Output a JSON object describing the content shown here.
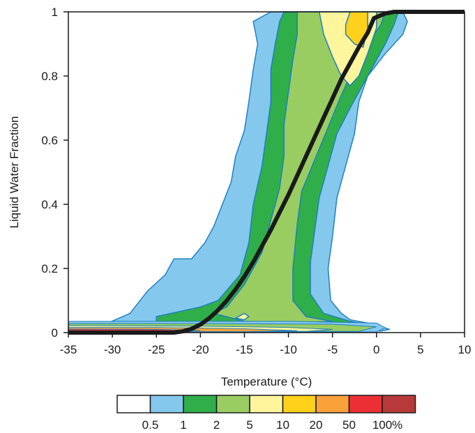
{
  "chart_data": {
    "type": "contour",
    "title": "",
    "xlabel": "Temperature (°C)",
    "ylabel": "Liquid Water Fraction",
    "xlim": [
      -35,
      10
    ],
    "ylim": [
      0,
      1
    ],
    "x_ticks": [
      "-35",
      "-30",
      "-25",
      "-20",
      "-15",
      "-10",
      "-5",
      "0",
      "5",
      "10"
    ],
    "y_ticks": [
      "0",
      "0.2",
      "0.4",
      "0.6",
      "0.8",
      "1"
    ],
    "grid": false,
    "contour_levels": [
      "0.5",
      "1",
      "2",
      "5",
      "10",
      "20",
      "50",
      "100"
    ],
    "colorbar_unit": "%",
    "colorbar_colors": [
      "#ffffff",
      "#85c8ee",
      "#2fae4a",
      "#99cd62",
      "#fff59d",
      "#ffd11a",
      "#f9a23a",
      "#ec2f34",
      "#b8393a"
    ],
    "contours": [
      {
        "level": "0.5",
        "color": "#85c8ee",
        "boundary": [
          [
            -30.5,
            0.03
          ],
          [
            -28,
            0.06
          ],
          [
            -26,
            0.13
          ],
          [
            -24,
            0.18
          ],
          [
            -23,
            0.23
          ],
          [
            -21,
            0.23
          ],
          [
            -19.5,
            0.28
          ],
          [
            -18.5,
            0.33
          ],
          [
            -17.5,
            0.4
          ],
          [
            -16.5,
            0.47
          ],
          [
            -16,
            0.55
          ],
          [
            -15,
            0.63
          ],
          [
            -14.5,
            0.72
          ],
          [
            -14,
            0.82
          ],
          [
            -13.5,
            0.9
          ],
          [
            -14,
            0.97
          ],
          [
            -12,
            1.0
          ],
          [
            3,
            1.0
          ],
          [
            3.5,
            0.97
          ],
          [
            3,
            0.93
          ],
          [
            1,
            0.87
          ],
          [
            -1,
            0.8
          ],
          [
            -2,
            0.72
          ],
          [
            -2.5,
            0.62
          ],
          [
            -3.5,
            0.52
          ],
          [
            -4.5,
            0.42
          ],
          [
            -5,
            0.3
          ],
          [
            -5.5,
            0.2
          ],
          [
            -5.2,
            0.1
          ],
          [
            -4,
            0.06
          ],
          [
            -3,
            0.04
          ],
          [
            -1,
            0.03
          ],
          [
            1.5,
            0.01
          ],
          [
            0.5,
            0.005
          ],
          [
            -5,
            0.005
          ],
          [
            -20,
            0.005
          ],
          [
            -35,
            0.005
          ],
          [
            -35,
            0.03
          ]
        ]
      },
      {
        "level": "1",
        "color": "#2fae4a",
        "boundary": [
          [
            -25,
            0.05
          ],
          [
            -20,
            0.08
          ],
          [
            -18,
            0.1
          ],
          [
            -15.5,
            0.18
          ],
          [
            -14.5,
            0.28
          ],
          [
            -14,
            0.4
          ],
          [
            -13,
            0.52
          ],
          [
            -12.5,
            0.62
          ],
          [
            -12,
            0.72
          ],
          [
            -12,
            0.82
          ],
          [
            -11.5,
            0.9
          ],
          [
            -11,
            0.97
          ],
          [
            -10.5,
            1.0
          ],
          [
            2.5,
            1.0
          ],
          [
            2,
            0.96
          ],
          [
            1,
            0.9
          ],
          [
            -1,
            0.8
          ],
          [
            -3,
            0.7
          ],
          [
            -4.5,
            0.62
          ],
          [
            -5.5,
            0.52
          ],
          [
            -6.5,
            0.42
          ],
          [
            -7,
            0.32
          ],
          [
            -7.5,
            0.22
          ],
          [
            -7.5,
            0.12
          ],
          [
            -6,
            0.06
          ],
          [
            -3,
            0.035
          ],
          [
            -1,
            0.025
          ],
          [
            -5,
            0.02
          ],
          [
            -15,
            0.02
          ],
          [
            -25,
            0.025
          ]
        ]
      },
      {
        "level": "2",
        "color": "#99cd62",
        "boundary": [
          [
            -18.5,
            0.06
          ],
          [
            -17,
            0.08
          ],
          [
            -15,
            0.15
          ],
          [
            -13,
            0.25
          ],
          [
            -12,
            0.35
          ],
          [
            -11,
            0.45
          ],
          [
            -10.5,
            0.55
          ],
          [
            -10.5,
            0.65
          ],
          [
            -10,
            0.75
          ],
          [
            -9.5,
            0.85
          ],
          [
            -9,
            0.93
          ],
          [
            -9,
            1.0
          ],
          [
            1,
            1.0
          ],
          [
            0.5,
            0.96
          ],
          [
            -1,
            0.9
          ],
          [
            -2.5,
            0.83
          ],
          [
            -4,
            0.74
          ],
          [
            -5.5,
            0.64
          ],
          [
            -7,
            0.54
          ],
          [
            -8.5,
            0.44
          ],
          [
            -9,
            0.34
          ],
          [
            -9.5,
            0.2
          ],
          [
            -9.5,
            0.1
          ],
          [
            -8,
            0.05
          ],
          [
            -5,
            0.035
          ],
          [
            -10,
            0.03
          ],
          [
            -15,
            0.035
          ]
        ]
      },
      {
        "level": "5",
        "color": "#fff59d",
        "boundary": [
          [
            -6.5,
            1.0
          ],
          [
            -6,
            0.93
          ],
          [
            -5,
            0.86
          ],
          [
            -4,
            0.8
          ],
          [
            -3,
            0.77
          ],
          [
            -2,
            0.8
          ],
          [
            -1,
            0.87
          ],
          [
            0,
            0.95
          ],
          [
            0,
            1.0
          ]
        ]
      },
      {
        "level": "5b",
        "color": "#fff59d",
        "boundary": [
          [
            -16,
            0.045
          ],
          [
            -15,
            0.06
          ],
          [
            -14.5,
            0.05
          ],
          [
            -15,
            0.04
          ]
        ]
      },
      {
        "level": "10",
        "color": "#ffd11a",
        "boundary": [
          [
            -3.5,
            0.93
          ],
          [
            -2.5,
            0.9
          ],
          [
            -1.5,
            0.89
          ],
          [
            -1,
            0.95
          ],
          [
            -1,
            1.0
          ],
          [
            -3,
            1.0
          ],
          [
            -3.5,
            0.96
          ]
        ]
      }
    ],
    "bottom_bands": [
      {
        "color": "#85c8ee",
        "points": [
          [
            -35,
            0.035
          ],
          [
            -10,
            0.035
          ],
          [
            0,
            0.03
          ],
          [
            1,
            0.015
          ],
          [
            0,
            0.002
          ],
          [
            -35,
            0.002
          ]
        ]
      },
      {
        "color": "#99cd62",
        "points": [
          [
            -35,
            0.028
          ],
          [
            -20,
            0.028
          ],
          [
            -5,
            0.026
          ],
          [
            0,
            0.018
          ],
          [
            -2,
            0.004
          ],
          [
            -35,
            0.004
          ]
        ]
      },
      {
        "color": "#fff59d",
        "points": [
          [
            -35,
            0.022
          ],
          [
            -20,
            0.02
          ],
          [
            -10,
            0.016
          ],
          [
            -5,
            0.01
          ],
          [
            -8,
            0.004
          ],
          [
            -35,
            0.004
          ]
        ]
      },
      {
        "color": "#f9a23a",
        "points": [
          [
            -35,
            0.016
          ],
          [
            -25,
            0.016
          ],
          [
            -15,
            0.012
          ],
          [
            -9,
            0.006
          ],
          [
            -15,
            0.003
          ],
          [
            -35,
            0.003
          ]
        ]
      },
      {
        "color": "#ec2f34",
        "points": [
          [
            -35,
            0.011
          ],
          [
            -25,
            0.01
          ],
          [
            -20,
            0.007
          ],
          [
            -24,
            0.002
          ],
          [
            -35,
            0.002
          ]
        ]
      },
      {
        "color": "#b8393a",
        "points": [
          [
            -35,
            0.006
          ],
          [
            -30,
            0.005
          ],
          [
            -28,
            0.002
          ],
          [
            -35,
            0.0015
          ]
        ]
      }
    ],
    "fit_curve": [
      [
        -35,
        0
      ],
      [
        -23,
        0
      ],
      [
        -22,
        0.004
      ],
      [
        -21,
        0.012
      ],
      [
        -20,
        0.025
      ],
      [
        -19,
        0.045
      ],
      [
        -18,
        0.07
      ],
      [
        -17,
        0.1
      ],
      [
        -16,
        0.135
      ],
      [
        -15,
        0.175
      ],
      [
        -14,
        0.22
      ],
      [
        -13,
        0.27
      ],
      [
        -12,
        0.32
      ],
      [
        -11,
        0.375
      ],
      [
        -10,
        0.43
      ],
      [
        -9,
        0.49
      ],
      [
        -8,
        0.55
      ],
      [
        -7,
        0.61
      ],
      [
        -6,
        0.67
      ],
      [
        -5,
        0.73
      ],
      [
        -4,
        0.79
      ],
      [
        -3,
        0.84
      ],
      [
        -2,
        0.89
      ],
      [
        -1,
        0.935
      ],
      [
        -0.3,
        0.98
      ],
      [
        1,
        0.995
      ],
      [
        2,
        1.0
      ],
      [
        10,
        1.0
      ]
    ],
    "fit_curve_color": "#1a1a1a"
  }
}
